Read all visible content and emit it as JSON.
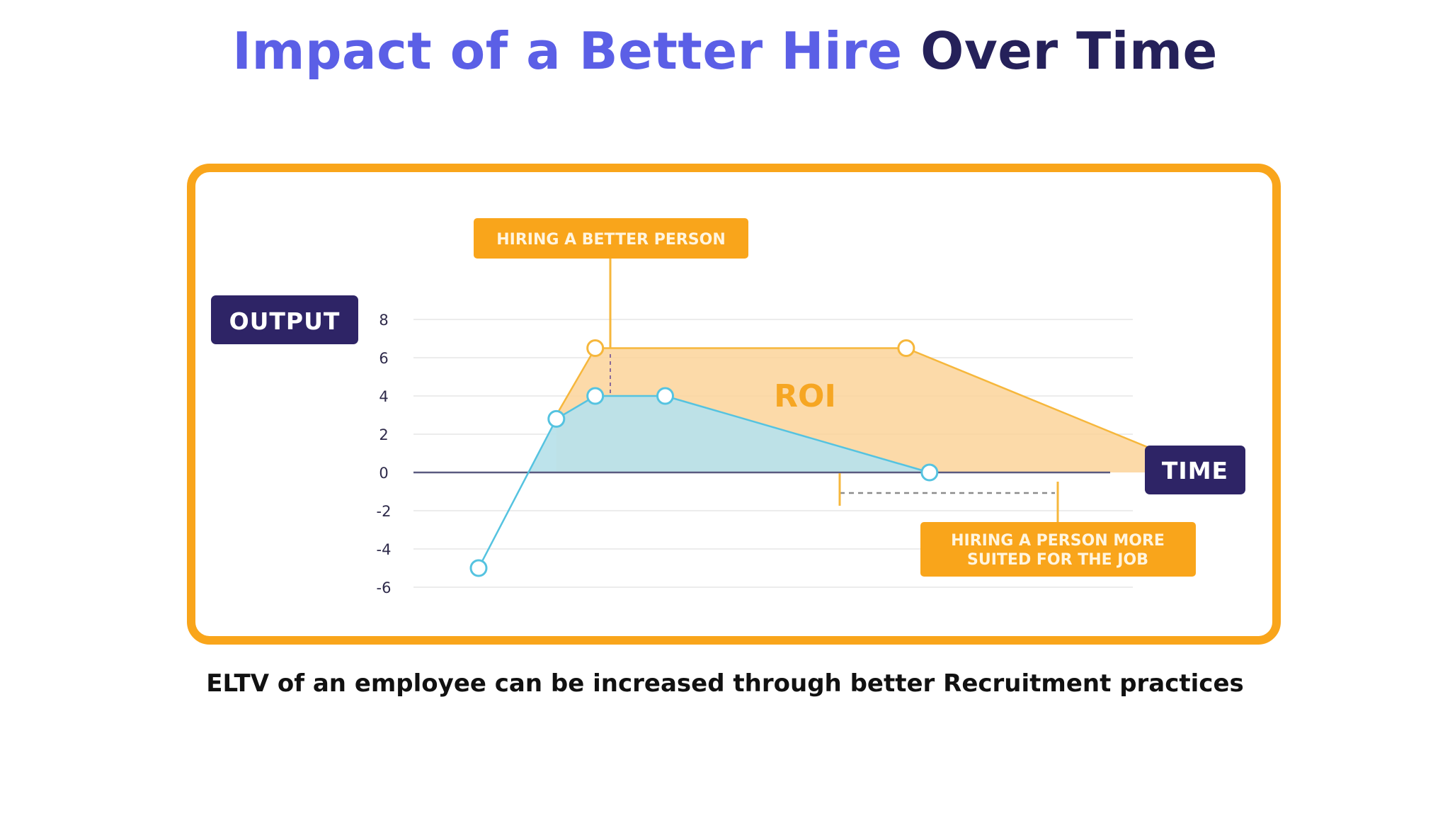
{
  "title": {
    "part1": "Impact of a Better Hire",
    "part2": "Over Time"
  },
  "caption": "ELTV of an employee can be increased through better Recruitment practices",
  "colors": {
    "title_accent": "#5b5fe6",
    "title_dark": "#25215a",
    "frame": "#f9a51b",
    "better": "#f6b73c",
    "better_fill": "#fbd49a",
    "baseline": "#55c3e0",
    "baseline_fill": "#b9e2ea",
    "label_dark": "#2e2466",
    "label_orange": "#f9a51b"
  },
  "chart_data": {
    "type": "area",
    "ylabel": "OUTPUT",
    "xlabel": "TIME",
    "ylim": [
      -6,
      8
    ],
    "y_ticks": [
      "8",
      "6",
      "4",
      "2",
      "0",
      "-2",
      "-4",
      "-6"
    ],
    "grid": true,
    "series": [
      {
        "color": "orange",
        "points": [
          {
            "x": 1.0,
            "y": 3
          },
          {
            "x": 1.5,
            "y": 6.5
          },
          {
            "x": 5.5,
            "y": 6.5
          },
          {
            "x": 9.4,
            "y": 0
          }
        ]
      },
      {
        "color": "blue",
        "points": [
          {
            "x": 0,
            "y": -5
          },
          {
            "x": 1.0,
            "y": 2.8
          },
          {
            "x": 1.5,
            "y": 4
          },
          {
            "x": 2.4,
            "y": 4
          },
          {
            "x": 5.8,
            "y": 0
          }
        ]
      }
    ],
    "annotations": [
      "HIRING A BETTER PERSON",
      "ROI",
      "HIRING A PERSON MORE SUITED FOR THE JOB"
    ]
  }
}
